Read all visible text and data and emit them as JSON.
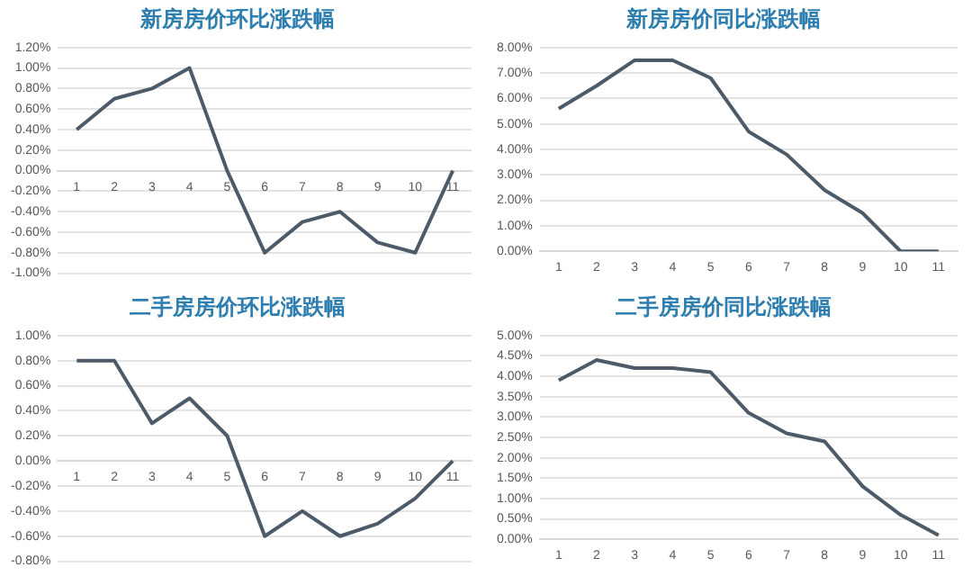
{
  "chart_data": [
    {
      "type": "line",
      "title": "新房房价环比涨跌幅",
      "categories": [
        "1",
        "2",
        "3",
        "4",
        "5",
        "6",
        "7",
        "8",
        "9",
        "10",
        "11"
      ],
      "series": [
        {
          "color": "#4d5b69",
          "values": [
            0.4,
            0.7,
            0.8,
            1.0,
            0,
            -0.8,
            -0.5,
            -0.4,
            -0.7,
            -0.8,
            0
          ]
        }
      ],
      "ylim": [
        -1.0,
        1.2
      ],
      "yticks": [
        {
          "value": -1.0,
          "label": "-1.00%"
        },
        {
          "value": -0.8,
          "label": "-0.80%"
        },
        {
          "value": -0.6,
          "label": "-0.60%"
        },
        {
          "value": -0.4,
          "label": "-0.40%"
        },
        {
          "value": -0.2,
          "label": "-0.20%"
        },
        {
          "value": 0,
          "label": "0.00%"
        },
        {
          "value": 0.2,
          "label": "0.20%"
        },
        {
          "value": 0.4,
          "label": "0.40%"
        },
        {
          "value": 0.6,
          "label": "0.60%"
        },
        {
          "value": 0.8,
          "label": "0.80%"
        },
        {
          "value": 1.0,
          "label": "1.00%"
        },
        {
          "value": 1.2,
          "label": "1.20%"
        }
      ],
      "grid": "y",
      "legend": false,
      "marker": "none",
      "line_style": "solid"
    },
    {
      "type": "line",
      "title": "新房房价同比涨跌幅",
      "categories": [
        "1",
        "2",
        "3",
        "4",
        "5",
        "6",
        "7",
        "8",
        "9",
        "10",
        "11"
      ],
      "series": [
        {
          "color": "#4d5b69",
          "values": [
            5.6,
            6.5,
            7.5,
            7.5,
            6.8,
            4.7,
            3.8,
            2.4,
            1.5,
            0,
            0
          ]
        }
      ],
      "ylim": [
        0,
        8
      ],
      "yticks": [
        {
          "value": 0,
          "label": "0.00%"
        },
        {
          "value": 1,
          "label": "1.00%"
        },
        {
          "value": 2,
          "label": "2.00%"
        },
        {
          "value": 3,
          "label": "3.00%"
        },
        {
          "value": 4,
          "label": "4.00%"
        },
        {
          "value": 5,
          "label": "5.00%"
        },
        {
          "value": 6,
          "label": "6.00%"
        },
        {
          "value": 7,
          "label": "7.00%"
        },
        {
          "value": 8,
          "label": "8.00%"
        }
      ],
      "grid": "y",
      "legend": false,
      "marker": "none",
      "line_style": "solid"
    },
    {
      "type": "line",
      "title": "二手房房价环比涨跌幅",
      "categories": [
        "1",
        "2",
        "3",
        "4",
        "5",
        "6",
        "7",
        "8",
        "9",
        "10",
        "11"
      ],
      "series": [
        {
          "color": "#4d5b69",
          "values": [
            0.8,
            0.8,
            0.3,
            0.5,
            0.2,
            -0.6,
            -0.4,
            -0.6,
            -0.5,
            -0.3,
            0
          ]
        }
      ],
      "ylim": [
        -0.8,
        1.0
      ],
      "yticks": [
        {
          "value": -0.8,
          "label": "-0.80%"
        },
        {
          "value": -0.6,
          "label": "-0.60%"
        },
        {
          "value": -0.4,
          "label": "-0.40%"
        },
        {
          "value": -0.2,
          "label": "-0.20%"
        },
        {
          "value": 0,
          "label": "0.00%"
        },
        {
          "value": 0.2,
          "label": "0.20%"
        },
        {
          "value": 0.4,
          "label": "0.40%"
        },
        {
          "value": 0.6,
          "label": "0.60%"
        },
        {
          "value": 0.8,
          "label": "0.80%"
        },
        {
          "value": 1.0,
          "label": "1.00%"
        }
      ],
      "grid": "y",
      "legend": false,
      "marker": "none",
      "line_style": "solid"
    },
    {
      "type": "line",
      "title": "二手房房价同比涨跌幅",
      "categories": [
        "1",
        "2",
        "3",
        "4",
        "5",
        "6",
        "7",
        "8",
        "9",
        "10",
        "11"
      ],
      "series": [
        {
          "color": "#4d5b69",
          "values": [
            3.9,
            4.4,
            4.2,
            4.2,
            4.1,
            3.1,
            2.6,
            2.4,
            1.3,
            0.6,
            0.1
          ]
        }
      ],
      "ylim": [
        0,
        5
      ],
      "yticks": [
        {
          "value": 0,
          "label": "0.00%"
        },
        {
          "value": 0.5,
          "label": "0.50%"
        },
        {
          "value": 1,
          "label": "1.00%"
        },
        {
          "value": 1.5,
          "label": "1.50%"
        },
        {
          "value": 2,
          "label": "2.00%"
        },
        {
          "value": 2.5,
          "label": "2.50%"
        },
        {
          "value": 3,
          "label": "3.00%"
        },
        {
          "value": 3.5,
          "label": "3.50%"
        },
        {
          "value": 4,
          "label": "4.00%"
        },
        {
          "value": 4.5,
          "label": "4.50%"
        },
        {
          "value": 5,
          "label": "5.00%"
        }
      ],
      "grid": "y",
      "legend": false,
      "marker": "none",
      "line_style": "solid"
    }
  ]
}
